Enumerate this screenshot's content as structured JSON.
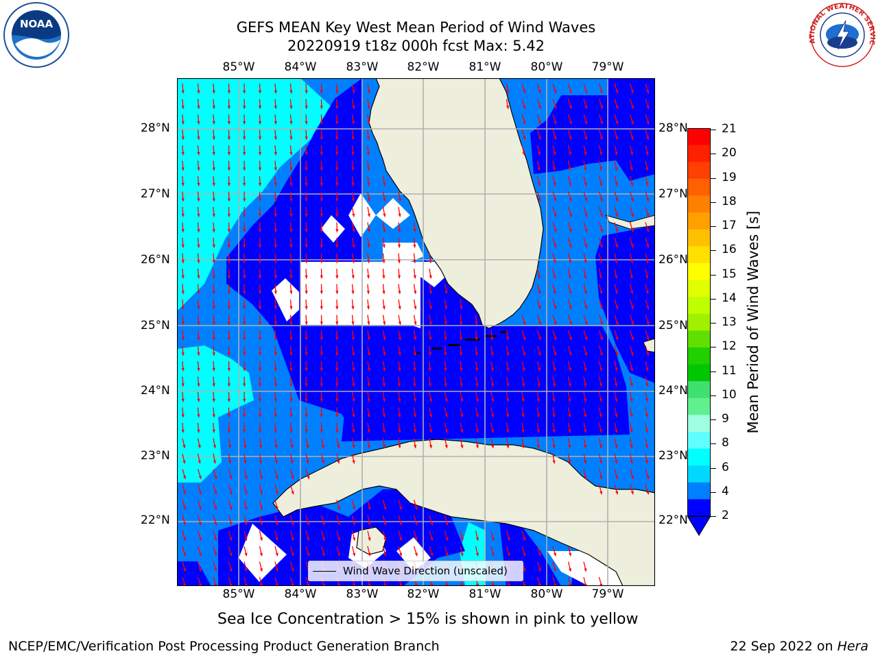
{
  "header": {
    "title_line1": "GEFS MEAN Key West Mean Period of Wind Waves",
    "title_line2": "20220919 t18z 000h fcst   Max: 5.42"
  },
  "logos": {
    "noaa_text": "NOAA",
    "nws_text": "NATIONAL WEATHER SERVICE"
  },
  "map": {
    "lon_labels": [
      "85°W",
      "84°W",
      "83°W",
      "82°W",
      "81°W",
      "80°W",
      "79°W"
    ],
    "lat_labels": [
      "28°N",
      "27°N",
      "26°N",
      "25°N",
      "24°N",
      "23°N",
      "22°N"
    ],
    "legend_label": "Wind Wave Direction (unscaled)",
    "land_color": "#eeeedd",
    "arrow_color": "#ff0000"
  },
  "colorbar": {
    "title": "Mean Period of Wind Waves [s]",
    "ticks": [
      "21",
      "20",
      "19",
      "18",
      "17",
      "16",
      "15",
      "14",
      "13",
      "12",
      "11",
      "10",
      "9",
      "8",
      "6",
      "4",
      "2"
    ],
    "colors": [
      "#ff0000",
      "#ff2000",
      "#ff4000",
      "#ff6000",
      "#ff8000",
      "#ffa000",
      "#ffc000",
      "#ffe000",
      "#ffff00",
      "#e0ff00",
      "#c0ff00",
      "#a0f000",
      "#60e000",
      "#20d000",
      "#00c800",
      "#40e070",
      "#60f090",
      "#a0ffe0",
      "#60ffff",
      "#00ffff",
      "#00d8ff",
      "#0080ff",
      "#0000ff"
    ]
  },
  "footer": {
    "note": "Sea Ice Concentration > 15% is shown in pink to yellow",
    "left": "NCEP/EMC/Verification Post Processing Product Generation Branch",
    "right_date": "22 Sep 2022 on",
    "right_host": "Hera"
  }
}
